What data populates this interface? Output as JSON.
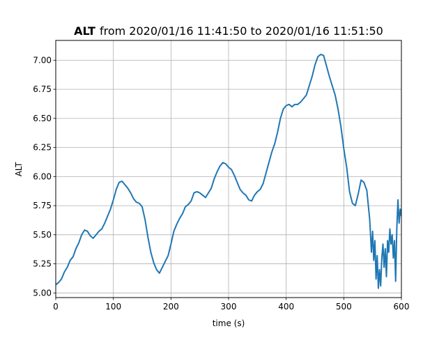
{
  "chart_data": {
    "type": "line",
    "title": {
      "bold": "ALT",
      "rest": "from 2020/01/16 11:41:50 to 2020/01/16 11:51:50"
    },
    "xlabel": "time (s)",
    "ylabel": "ALT",
    "xlim": [
      0,
      600
    ],
    "ylim": [
      4.96,
      7.17
    ],
    "grid": true,
    "x_ticks": [
      0,
      100,
      200,
      300,
      400,
      500,
      600
    ],
    "y_ticks": [
      5.0,
      5.25,
      5.5,
      5.75,
      6.0,
      6.25,
      6.5,
      6.75,
      7.0
    ],
    "x_tick_labels": [
      "0",
      "100",
      "200",
      "300",
      "400",
      "500",
      "600"
    ],
    "y_tick_labels": [
      "5.00",
      "5.25",
      "5.50",
      "5.75",
      "6.00",
      "6.25",
      "6.50",
      "6.75",
      "7.00"
    ],
    "series": [
      {
        "color": "#1f77b4",
        "x": [
          0,
          5,
          10,
          15,
          20,
          25,
          30,
          35,
          40,
          45,
          50,
          55,
          60,
          65,
          70,
          75,
          80,
          85,
          90,
          95,
          100,
          105,
          110,
          115,
          120,
          125,
          130,
          135,
          140,
          145,
          150,
          155,
          160,
          165,
          170,
          175,
          180,
          185,
          190,
          195,
          200,
          205,
          210,
          215,
          220,
          225,
          230,
          235,
          240,
          245,
          250,
          255,
          260,
          265,
          270,
          275,
          280,
          285,
          290,
          295,
          300,
          305,
          310,
          315,
          320,
          325,
          330,
          335,
          340,
          345,
          350,
          355,
          360,
          365,
          370,
          375,
          380,
          385,
          390,
          395,
          400,
          405,
          410,
          415,
          420,
          425,
          430,
          435,
          440,
          445,
          450,
          455,
          460,
          465,
          470,
          475,
          480,
          485,
          490,
          495,
          500,
          505,
          510,
          515,
          520,
          525,
          530,
          535,
          540,
          545,
          548,
          550,
          552,
          554,
          556,
          558,
          560,
          562,
          564,
          566,
          568,
          570,
          572,
          574,
          576,
          578,
          580,
          582,
          584,
          586,
          588,
          590,
          592,
          594,
          596,
          598,
          600
        ],
        "y": [
          5.07,
          5.09,
          5.12,
          5.18,
          5.22,
          5.28,
          5.31,
          5.38,
          5.43,
          5.5,
          5.54,
          5.53,
          5.49,
          5.47,
          5.5,
          5.53,
          5.55,
          5.6,
          5.66,
          5.72,
          5.8,
          5.89,
          5.95,
          5.96,
          5.93,
          5.9,
          5.86,
          5.81,
          5.78,
          5.77,
          5.74,
          5.63,
          5.48,
          5.35,
          5.26,
          5.2,
          5.17,
          5.22,
          5.27,
          5.32,
          5.42,
          5.53,
          5.59,
          5.64,
          5.68,
          5.74,
          5.76,
          5.79,
          5.86,
          5.87,
          5.86,
          5.84,
          5.82,
          5.86,
          5.9,
          5.98,
          6.04,
          6.09,
          6.12,
          6.11,
          6.08,
          6.06,
          6.01,
          5.95,
          5.89,
          5.86,
          5.84,
          5.8,
          5.79,
          5.84,
          5.87,
          5.89,
          5.94,
          6.03,
          6.12,
          6.21,
          6.28,
          6.38,
          6.5,
          6.58,
          6.61,
          6.62,
          6.6,
          6.62,
          6.62,
          6.64,
          6.67,
          6.7,
          6.78,
          6.86,
          6.96,
          7.03,
          7.05,
          7.04,
          6.95,
          6.86,
          6.78,
          6.7,
          6.58,
          6.43,
          6.24,
          6.08,
          5.87,
          5.77,
          5.75,
          5.85,
          5.97,
          5.95,
          5.88,
          5.63,
          5.35,
          5.53,
          5.28,
          5.45,
          5.12,
          5.32,
          5.04,
          5.2,
          5.06,
          5.3,
          5.42,
          5.22,
          5.38,
          5.14,
          5.45,
          5.35,
          5.55,
          5.42,
          5.5,
          5.3,
          5.45,
          5.1,
          5.55,
          5.8,
          5.6,
          5.72,
          5.66
        ]
      }
    ]
  }
}
